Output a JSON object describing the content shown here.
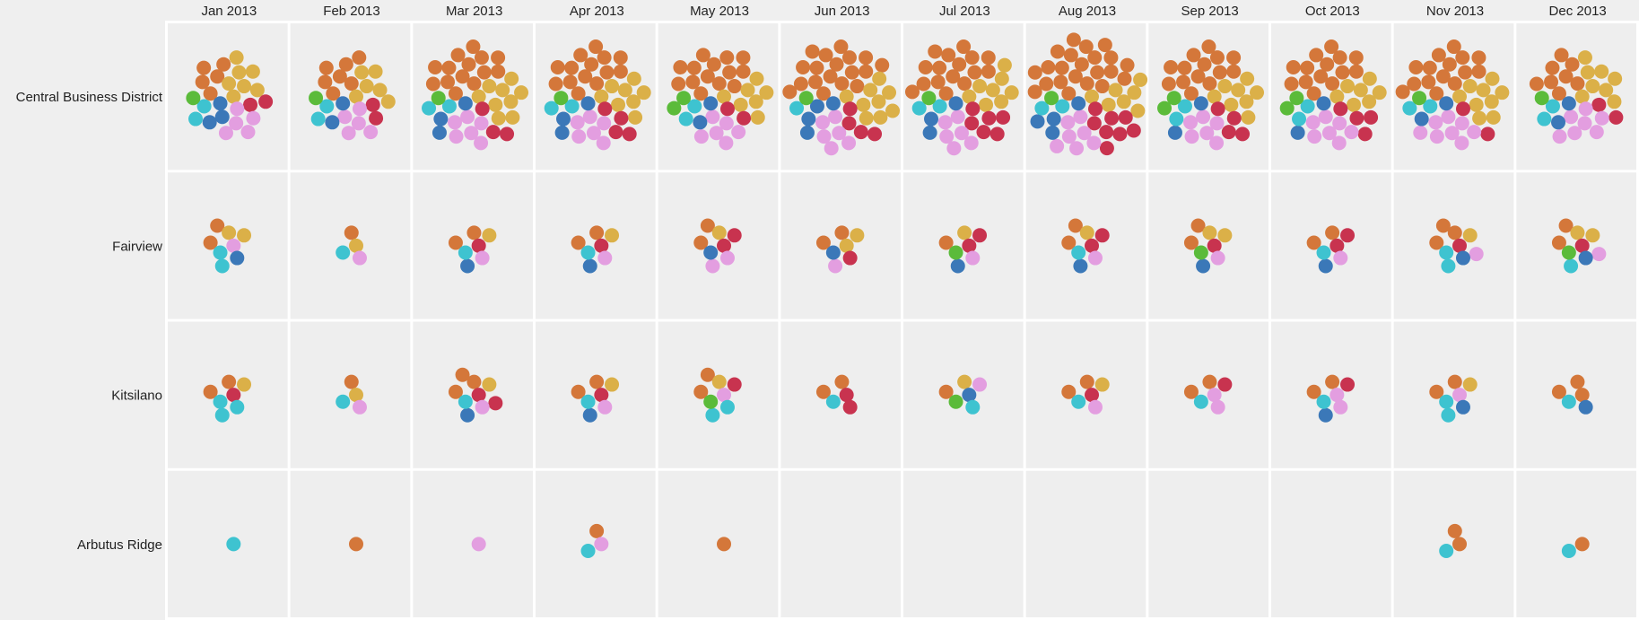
{
  "chart_data": {
    "type": "dot-grid",
    "rows": [
      "Central Business District",
      "Fairview",
      "Kitsilano",
      "Arbutus Ridge"
    ],
    "columns": [
      "Jan 2013",
      "Feb 2013",
      "Mar 2013",
      "Apr 2013",
      "May 2013",
      "Jun 2013",
      "Jul 2013",
      "Aug 2013",
      "Sep 2013",
      "Oct 2013",
      "Nov 2013",
      "Dec 2013"
    ],
    "series": [
      {
        "color": "#d4773a"
      },
      {
        "color": "#dbb048"
      },
      {
        "color": "#c8334f"
      },
      {
        "color": "#e39ee0"
      },
      {
        "color": "#3b78b8"
      },
      {
        "color": "#3ec3d0"
      },
      {
        "color": "#5bbb3a"
      }
    ],
    "counts": [
      [
        [
          5,
          7,
          2,
          5,
          3,
          2,
          1
        ],
        [
          7,
          6,
          2,
          5,
          2,
          2,
          1
        ],
        [
          14,
          9,
          3,
          6,
          3,
          2,
          1
        ],
        [
          14,
          8,
          4,
          6,
          3,
          2,
          1
        ],
        [
          14,
          7,
          2,
          6,
          2,
          2,
          2
        ],
        [
          18,
          9,
          4,
          6,
          4,
          1,
          1
        ],
        [
          16,
          8,
          6,
          6,
          3,
          2,
          1
        ],
        [
          22,
          7,
          8,
          7,
          4,
          2,
          1
        ],
        [
          14,
          8,
          4,
          6,
          2,
          2,
          2
        ],
        [
          14,
          7,
          4,
          7,
          2,
          2,
          2
        ],
        [
          15,
          9,
          2,
          8,
          2,
          2,
          1
        ],
        [
          8,
          8,
          2,
          7,
          2,
          2,
          1
        ]
      ],
      [
        [
          2,
          2,
          0,
          1,
          1,
          2,
          0
        ],
        [
          1,
          1,
          0,
          1,
          0,
          1,
          0
        ],
        [
          2,
          1,
          1,
          1,
          1,
          1,
          0
        ],
        [
          2,
          1,
          1,
          1,
          1,
          1,
          0
        ],
        [
          2,
          1,
          2,
          2,
          1,
          0,
          0
        ],
        [
          2,
          2,
          1,
          1,
          1,
          0,
          0
        ],
        [
          1,
          1,
          2,
          1,
          1,
          0,
          1
        ],
        [
          2,
          1,
          2,
          1,
          1,
          1,
          0
        ],
        [
          2,
          2,
          1,
          1,
          1,
          0,
          1
        ],
        [
          2,
          0,
          2,
          1,
          1,
          1,
          0
        ],
        [
          3,
          1,
          1,
          1,
          1,
          2,
          0
        ],
        [
          2,
          2,
          1,
          1,
          1,
          1,
          1
        ]
      ],
      [
        [
          2,
          1,
          1,
          0,
          0,
          3,
          0
        ],
        [
          1,
          1,
          0,
          1,
          0,
          1,
          0
        ],
        [
          3,
          1,
          2,
          1,
          1,
          1,
          0
        ],
        [
          2,
          1,
          1,
          1,
          1,
          1,
          0
        ],
        [
          2,
          1,
          1,
          1,
          0,
          2,
          1
        ],
        [
          2,
          0,
          2,
          0,
          0,
          1,
          0
        ],
        [
          1,
          1,
          0,
          1,
          1,
          1,
          1
        ],
        [
          2,
          1,
          1,
          1,
          0,
          1,
          0
        ],
        [
          2,
          0,
          1,
          2,
          0,
          1,
          0
        ],
        [
          2,
          0,
          1,
          2,
          1,
          1,
          0
        ],
        [
          2,
          1,
          0,
          1,
          1,
          2,
          0
        ],
        [
          3,
          0,
          0,
          0,
          1,
          1,
          0
        ]
      ],
      [
        [
          0,
          0,
          0,
          0,
          0,
          1,
          0
        ],
        [
          1,
          0,
          0,
          0,
          0,
          0,
          0
        ],
        [
          0,
          0,
          0,
          1,
          0,
          0,
          0
        ],
        [
          1,
          0,
          0,
          1,
          0,
          1,
          0
        ],
        [
          1,
          0,
          0,
          0,
          0,
          0,
          0
        ],
        [
          0,
          0,
          0,
          0,
          0,
          0,
          0
        ],
        [
          0,
          0,
          0,
          0,
          0,
          0,
          0
        ],
        [
          0,
          0,
          0,
          0,
          0,
          0,
          0
        ],
        [
          0,
          0,
          0,
          0,
          0,
          0,
          0
        ],
        [
          0,
          0,
          0,
          0,
          0,
          0,
          0
        ],
        [
          2,
          0,
          0,
          0,
          0,
          1,
          0
        ],
        [
          1,
          0,
          0,
          0,
          0,
          1,
          0
        ]
      ]
    ]
  }
}
